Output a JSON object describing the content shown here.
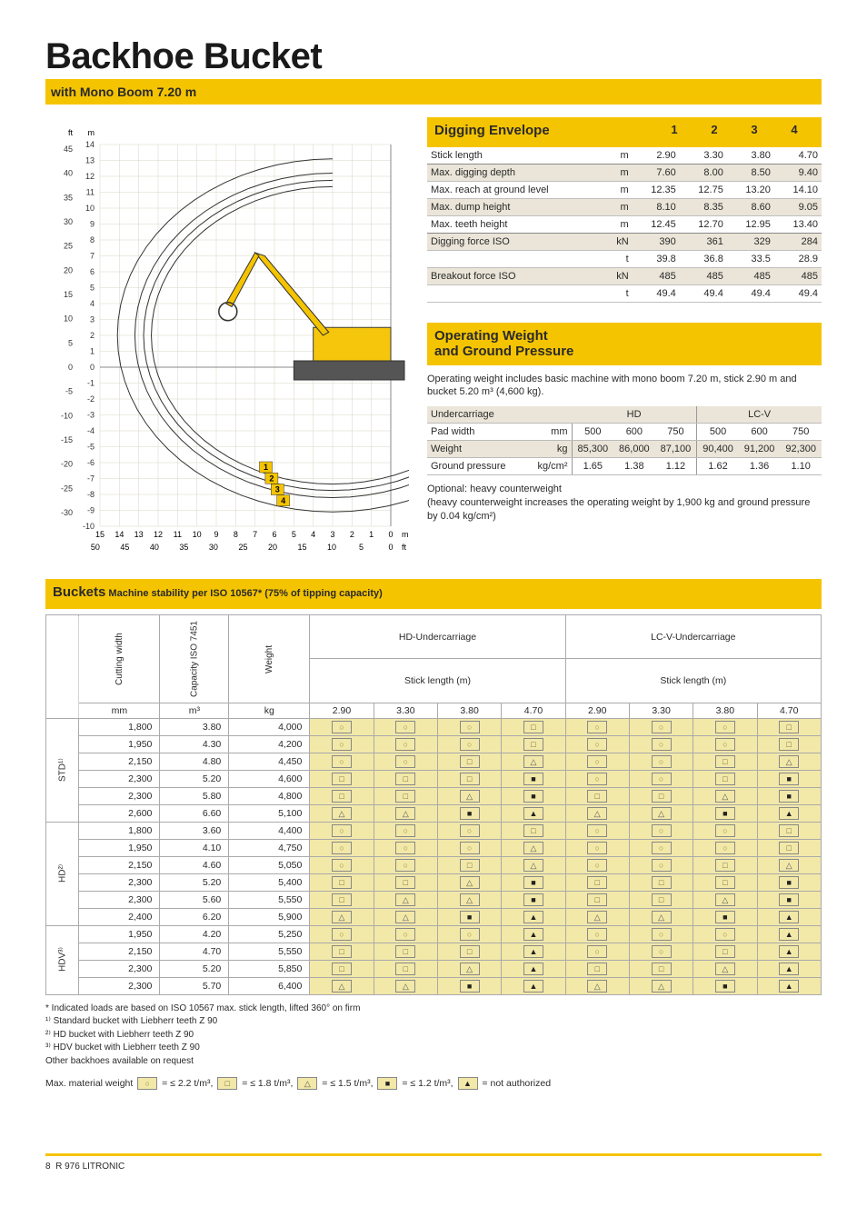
{
  "header": {
    "title": "Backhoe Bucket",
    "subtitle": "with Mono Boom 7.20 m"
  },
  "digging_envelope": {
    "heading": "Digging Envelope",
    "col_labels": [
      "1",
      "2",
      "3",
      "4"
    ],
    "rows": [
      {
        "label": "Stick length",
        "unit": "m",
        "vals": [
          "2.90",
          "3.30",
          "3.80",
          "4.70"
        ],
        "shade": false,
        "sep": true
      },
      {
        "label": "Max. digging depth",
        "unit": "m",
        "vals": [
          "7.60",
          "8.00",
          "8.50",
          "9.40"
        ],
        "shade": true
      },
      {
        "label": "Max. reach at ground level",
        "unit": "m",
        "vals": [
          "12.35",
          "12.75",
          "13.20",
          "14.10"
        ],
        "shade": false
      },
      {
        "label": "Max. dump height",
        "unit": "m",
        "vals": [
          "8.10",
          "8.35",
          "8.60",
          "9.05"
        ],
        "shade": true
      },
      {
        "label": "Max. teeth height",
        "unit": "m",
        "vals": [
          "12.45",
          "12.70",
          "12.95",
          "13.40"
        ],
        "shade": false,
        "sep": true
      },
      {
        "label": "Digging force ISO",
        "unit": "kN",
        "vals": [
          "390",
          "361",
          "329",
          "284"
        ],
        "shade": true
      },
      {
        "label": "",
        "unit": "t",
        "vals": [
          "39.8",
          "36.8",
          "33.5",
          "28.9"
        ],
        "shade": false
      },
      {
        "label": "Breakout force ISO",
        "unit": "kN",
        "vals": [
          "485",
          "485",
          "485",
          "485"
        ],
        "shade": true
      },
      {
        "label": "",
        "unit": "t",
        "vals": [
          "49.4",
          "49.4",
          "49.4",
          "49.4"
        ],
        "shade": false
      }
    ]
  },
  "op_weight": {
    "heading_l1": "Operating Weight",
    "heading_l2": "and Ground Pressure",
    "intro": "Operating weight includes basic machine with mono boom 7.20 m, stick 2.90 m and bucket 5.20 m³ (4,600 kg).",
    "undercarriage_hdr": "Undercarriage",
    "groups": [
      "HD",
      "LC-V"
    ],
    "rows": [
      {
        "label": "Pad width",
        "unit": "mm",
        "hd": [
          "500",
          "600",
          "750"
        ],
        "lcv": [
          "500",
          "600",
          "750"
        ]
      },
      {
        "label": "Weight",
        "unit": "kg",
        "hd": [
          "85,300",
          "86,000",
          "87,100"
        ],
        "lcv": [
          "90,400",
          "91,200",
          "92,300"
        ]
      },
      {
        "label": "Ground pressure",
        "unit": "kg/cm²",
        "hd": [
          "1.65",
          "1.38",
          "1.12"
        ],
        "lcv": [
          "1.62",
          "1.36",
          "1.10"
        ]
      }
    ],
    "optional": "Optional: heavy counterweight",
    "optional_note": "(heavy counterweight increases the operating weight by 1,900 kg and ground pressure by 0.04 kg/cm²)"
  },
  "buckets": {
    "heading": "Buckets",
    "subheading": "Machine stability per ISO 10567* (75% of tipping capacity)",
    "header_cols": {
      "cutting": "Cutting width",
      "capacity": "Capacity ISO 7451",
      "weight": "Weight",
      "stick_label": "Stick length (m)",
      "hd_uc": "HD-Undercarriage",
      "lcv_uc": "LC-V-Undercarriage",
      "sticks": [
        "2.90",
        "3.30",
        "3.80",
        "4.70"
      ]
    },
    "units": {
      "cutting": "mm",
      "capacity": "m³",
      "weight": "kg"
    },
    "groups": [
      {
        "name": "STD¹⁾",
        "rows": [
          {
            "cw": "1,800",
            "cap": "3.80",
            "wt": "4,000",
            "hd": [
              "c",
              "c",
              "c",
              "s"
            ],
            "lcv": [
              "c",
              "c",
              "c",
              "s"
            ]
          },
          {
            "cw": "1,950",
            "cap": "4.30",
            "wt": "4,200",
            "hd": [
              "c",
              "c",
              "c",
              "s"
            ],
            "lcv": [
              "c",
              "c",
              "c",
              "s"
            ]
          },
          {
            "cw": "2,150",
            "cap": "4.80",
            "wt": "4,450",
            "hd": [
              "c",
              "c",
              "s",
              "t"
            ],
            "lcv": [
              "c",
              "c",
              "s",
              "t"
            ]
          },
          {
            "cw": "2,300",
            "cap": "5.20",
            "wt": "4,600",
            "hd": [
              "s",
              "s",
              "s",
              "fs"
            ],
            "lcv": [
              "c",
              "c",
              "s",
              "fs"
            ]
          },
          {
            "cw": "2,300",
            "cap": "5.80",
            "wt": "4,800",
            "hd": [
              "s",
              "s",
              "t",
              "fs"
            ],
            "lcv": [
              "s",
              "s",
              "t",
              "fs"
            ]
          },
          {
            "cw": "2,600",
            "cap": "6.60",
            "wt": "5,100",
            "hd": [
              "t",
              "t",
              "fs",
              "ft"
            ],
            "lcv": [
              "t",
              "t",
              "fs",
              "ft"
            ]
          }
        ]
      },
      {
        "name": "HD²⁾",
        "rows": [
          {
            "cw": "1,800",
            "cap": "3.60",
            "wt": "4,400",
            "hd": [
              "c",
              "c",
              "c",
              "s"
            ],
            "lcv": [
              "c",
              "c",
              "c",
              "s"
            ]
          },
          {
            "cw": "1,950",
            "cap": "4.10",
            "wt": "4,750",
            "hd": [
              "c",
              "c",
              "c",
              "t"
            ],
            "lcv": [
              "c",
              "c",
              "c",
              "s"
            ]
          },
          {
            "cw": "2,150",
            "cap": "4.60",
            "wt": "5,050",
            "hd": [
              "c",
              "c",
              "s",
              "t"
            ],
            "lcv": [
              "c",
              "c",
              "s",
              "t"
            ]
          },
          {
            "cw": "2,300",
            "cap": "5.20",
            "wt": "5,400",
            "hd": [
              "s",
              "s",
              "t",
              "fs"
            ],
            "lcv": [
              "s",
              "s",
              "s",
              "fs"
            ]
          },
          {
            "cw": "2,300",
            "cap": "5.60",
            "wt": "5,550",
            "hd": [
              "s",
              "t",
              "t",
              "fs"
            ],
            "lcv": [
              "s",
              "s",
              "t",
              "fs"
            ]
          },
          {
            "cw": "2,400",
            "cap": "6.20",
            "wt": "5,900",
            "hd": [
              "t",
              "t",
              "fs",
              "ft"
            ],
            "lcv": [
              "t",
              "t",
              "fs",
              "ft"
            ]
          }
        ]
      },
      {
        "name": "HDV³⁾",
        "rows": [
          {
            "cw": "1,950",
            "cap": "4.20",
            "wt": "5,250",
            "hd": [
              "c",
              "c",
              "c",
              "ft"
            ],
            "lcv": [
              "c",
              "c",
              "c",
              "ft"
            ]
          },
          {
            "cw": "2,150",
            "cap": "4.70",
            "wt": "5,550",
            "hd": [
              "s",
              "s",
              "s",
              "ft"
            ],
            "lcv": [
              "c",
              "c",
              "s",
              "ft"
            ]
          },
          {
            "cw": "2,300",
            "cap": "5.20",
            "wt": "5,850",
            "hd": [
              "s",
              "s",
              "t",
              "ft"
            ],
            "lcv": [
              "s",
              "s",
              "t",
              "ft"
            ]
          },
          {
            "cw": "2,300",
            "cap": "5.70",
            "wt": "6,400",
            "hd": [
              "t",
              "t",
              "fs",
              "ft"
            ],
            "lcv": [
              "t",
              "t",
              "fs",
              "ft"
            ]
          }
        ]
      }
    ],
    "footnotes": [
      "* Indicated loads are based on ISO 10567 max. stick length, lifted 360° on firm",
      "¹⁾ Standard bucket with Liebherr teeth Z 90",
      "²⁾ HD bucket with Liebherr teeth Z 90",
      "³⁾ HDV bucket with Liebherr teeth Z 90",
      "Other backhoes available on request"
    ],
    "legend_label": "Max. material weight",
    "legend": [
      {
        "sym": "c",
        "text": "= ≤ 2.2 t/m³,"
      },
      {
        "sym": "s",
        "text": "= ≤ 1.8 t/m³,"
      },
      {
        "sym": "t",
        "text": "= ≤ 1.5 t/m³,"
      },
      {
        "sym": "fs",
        "text": "= ≤ 1.2 t/m³,"
      },
      {
        "sym": "ft",
        "text": "= not authorized"
      }
    ]
  },
  "chart": {
    "ft_label": "ft",
    "m_label": "m",
    "y_m": [
      14,
      13,
      12,
      11,
      10,
      9,
      8,
      7,
      6,
      5,
      4,
      3,
      2,
      1,
      0,
      -1,
      -2,
      -3,
      -4,
      -5,
      -6,
      -7,
      -8,
      -9,
      -10
    ],
    "y_ft": [
      45,
      40,
      35,
      30,
      25,
      20,
      15,
      10,
      5,
      0,
      -5,
      -10,
      -15,
      -20,
      -25,
      -30
    ],
    "x_m": [
      15,
      14,
      13,
      12,
      11,
      10,
      9,
      8,
      7,
      6,
      5,
      4,
      3,
      2,
      1,
      0
    ],
    "x_ft": [
      50,
      45,
      40,
      35,
      30,
      25,
      20,
      15,
      10,
      5,
      0
    ],
    "x_unit_m": "m",
    "x_unit_ft": "ft",
    "curve_labels": [
      "1",
      "2",
      "3",
      "4"
    ]
  },
  "footer": {
    "page": "8",
    "model": "R 976 LITRONIC"
  }
}
